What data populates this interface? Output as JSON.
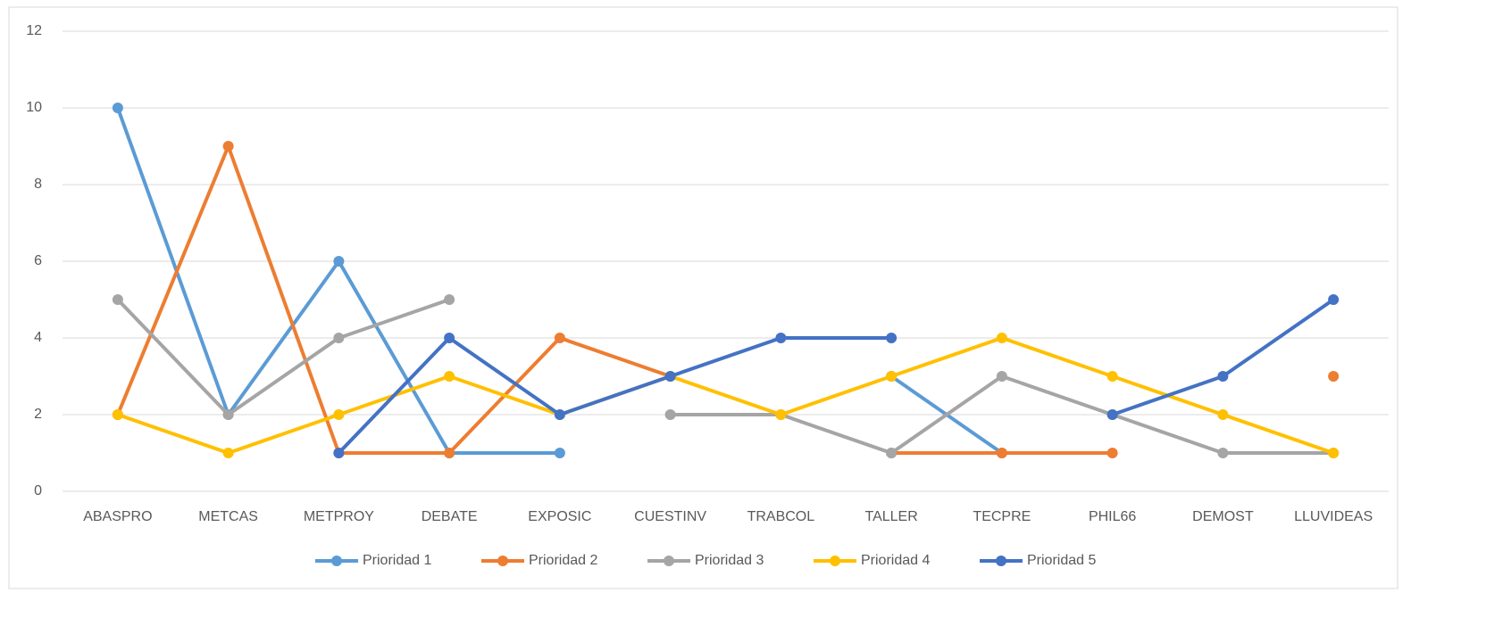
{
  "chart_data": {
    "type": "line",
    "categories": [
      "ABASPRO",
      "METCAS",
      "METPROY",
      "DEBATE",
      "EXPOSIC",
      "CUESTINV",
      "TRABCOL",
      "TALLER",
      "TECPRE",
      "PHIL66",
      "DEMOST",
      "LLUVIDEAS"
    ],
    "series": [
      {
        "name": "Prioridad 1",
        "color": "#5b9bd5",
        "values": [
          10,
          2,
          6,
          1,
          1,
          null,
          null,
          3,
          1,
          null,
          null,
          null
        ]
      },
      {
        "name": "Prioridad 2",
        "color": "#ed7d31",
        "values": [
          2,
          9,
          1,
          1,
          4,
          3,
          null,
          1,
          1,
          1,
          null,
          3
        ]
      },
      {
        "name": "Prioridad 3",
        "color": "#a5a5a5",
        "values": [
          5,
          2,
          4,
          5,
          null,
          2,
          2,
          1,
          3,
          2,
          1,
          1
        ]
      },
      {
        "name": "Prioridad 4",
        "color": "#ffc000",
        "values": [
          2,
          1,
          2,
          3,
          2,
          3,
          2,
          3,
          4,
          3,
          2,
          1
        ]
      },
      {
        "name": "Prioridad 5",
        "color": "#4472c4",
        "values": [
          null,
          null,
          1,
          4,
          2,
          3,
          4,
          4,
          null,
          2,
          3,
          5
        ]
      }
    ],
    "ylim": [
      0,
      12
    ],
    "yticks": [
      0,
      2,
      4,
      6,
      8,
      10,
      12
    ],
    "grid": true,
    "legend": "bottom"
  }
}
